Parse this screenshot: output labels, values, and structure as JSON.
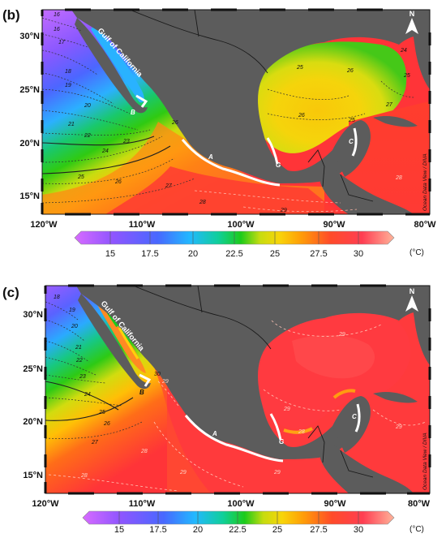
{
  "panels": [
    {
      "label": "(b)",
      "lat_ticks": [
        "30°N",
        "25°N",
        "20°N",
        "15°N"
      ],
      "lon_ticks": [
        "120°W",
        "110°W",
        "100°W",
        "90°W",
        "80°W"
      ],
      "place_labels": {
        "gulf": "Gulf of California",
        "a": "A",
        "b": "B",
        "c": "C",
        "g": "G"
      },
      "north": "N",
      "credit": "Ocean Data View / DIVA",
      "contours": [
        {
          "v": "16"
        },
        {
          "v": "16"
        },
        {
          "v": "17"
        },
        {
          "v": "18"
        },
        {
          "v": "19"
        },
        {
          "v": "20"
        },
        {
          "v": "21"
        },
        {
          "v": "22"
        },
        {
          "v": "23"
        },
        {
          "v": "24"
        },
        {
          "v": "25"
        },
        {
          "v": "26"
        },
        {
          "v": "27"
        },
        {
          "v": "28"
        },
        {
          "v": "29"
        },
        {
          "v": "26"
        },
        {
          "v": "25"
        },
        {
          "v": "26"
        },
        {
          "v": "24"
        },
        {
          "v": "25"
        },
        {
          "v": "27"
        },
        {
          "v": "26"
        },
        {
          "v": "25"
        },
        {
          "v": "28"
        }
      ],
      "colorbar": {
        "ticks": [
          "15",
          "17.5",
          "20",
          "22.5",
          "25",
          "27.5",
          "30"
        ],
        "unit": "(°C)"
      }
    },
    {
      "label": "(c)",
      "lat_ticks": [
        "30°N",
        "25°N",
        "20°N",
        "15°N"
      ],
      "lon_ticks": [
        "120°W",
        "110°W",
        "100°W",
        "90°W",
        "80°W"
      ],
      "place_labels": {
        "gulf": "Gulf of California",
        "a": "A",
        "b": "B",
        "c": "C",
        "g": "G"
      },
      "north": "N",
      "credit": "Ocean Data View / DIVA",
      "contours": [
        {
          "v": "18"
        },
        {
          "v": "19"
        },
        {
          "v": "20"
        },
        {
          "v": "21"
        },
        {
          "v": "22"
        },
        {
          "v": "23"
        },
        {
          "v": "24"
        },
        {
          "v": "25"
        },
        {
          "v": "26"
        },
        {
          "v": "27"
        },
        {
          "v": "28"
        },
        {
          "v": "28"
        },
        {
          "v": "29"
        },
        {
          "v": "29"
        },
        {
          "v": "29"
        },
        {
          "v": "29"
        },
        {
          "v": "28"
        },
        {
          "v": "29"
        },
        {
          "v": "29"
        },
        {
          "v": "30"
        }
      ],
      "colorbar": {
        "ticks": [
          "15",
          "17.5",
          "20",
          "22.5",
          "25",
          "27.5",
          "30"
        ],
        "unit": "(°C)"
      }
    }
  ],
  "colors": {
    "land": "#5c5c5c",
    "coast_highlight": "#ffffff",
    "scale": [
      "#d86bff",
      "#7f52ff",
      "#4466ff",
      "#24b4ff",
      "#13d0a5",
      "#16c916",
      "#c3dc12",
      "#f6dd0a",
      "#ffbb05",
      "#ff7a10",
      "#ff3d33",
      "#ff4c57",
      "#ffa08c"
    ]
  }
}
